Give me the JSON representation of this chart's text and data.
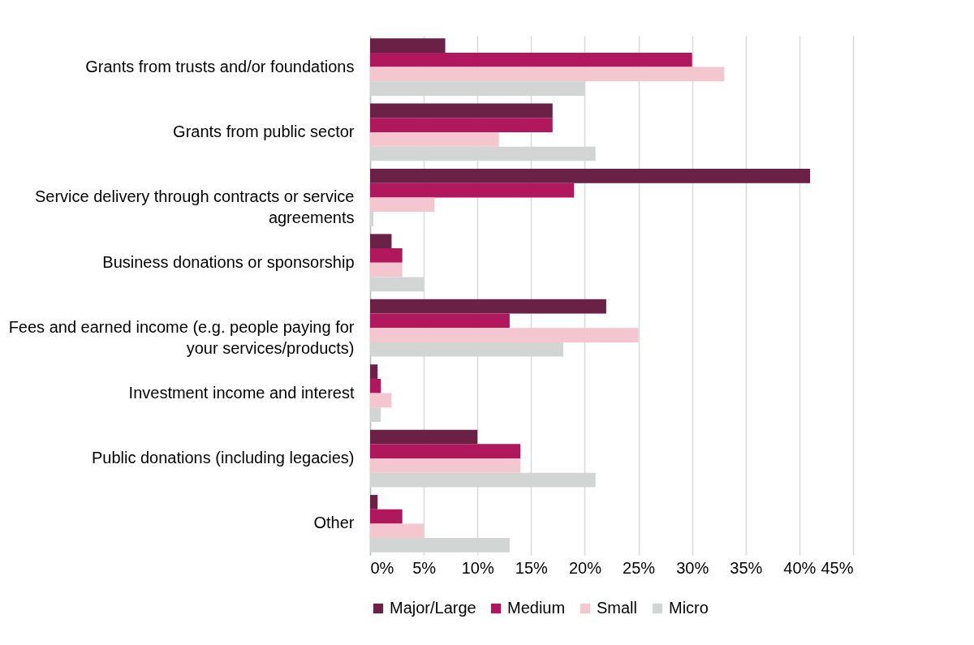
{
  "chart_data": {
    "type": "bar",
    "orientation": "horizontal",
    "categories": [
      "Grants from trusts and/or foundations",
      "Grants from public sector",
      "Service delivery through contracts or service agreements",
      "Business donations or sponsorship",
      "Fees and earned income (e.g. people paying for your services/products)",
      "Investment income and interest",
      "Public donations (including legacies)",
      "Other"
    ],
    "series": [
      {
        "name": "Major/Large",
        "color": "#6b2046",
        "values": [
          7,
          17,
          41,
          2,
          22,
          0.7,
          10,
          0.7
        ]
      },
      {
        "name": "Medium",
        "color": "#b0175c",
        "values": [
          30,
          17,
          19,
          3,
          13,
          1,
          14,
          3
        ]
      },
      {
        "name": "Small",
        "color": "#f4c6d0",
        "values": [
          33,
          12,
          6,
          3,
          25,
          2,
          14,
          5
        ]
      },
      {
        "name": "Micro",
        "color": "#d3d5d5",
        "values": [
          20,
          21,
          0.3,
          5,
          18,
          1,
          21,
          13
        ]
      }
    ],
    "xlim": [
      0,
      45
    ],
    "xticks": [
      {
        "value": 0,
        "label": "0%"
      },
      {
        "value": 5,
        "label": "5%"
      },
      {
        "value": 10,
        "label": "10%"
      },
      {
        "value": 15,
        "label": "15%"
      },
      {
        "value": 20,
        "label": "20%"
      },
      {
        "value": 25,
        "label": "25%"
      },
      {
        "value": 30,
        "label": "30%"
      },
      {
        "value": 35,
        "label": "35%"
      },
      {
        "value": 40,
        "label": "40%"
      },
      {
        "value": 45,
        "label": "45%"
      }
    ],
    "grid": "x",
    "legend": "bottom"
  }
}
